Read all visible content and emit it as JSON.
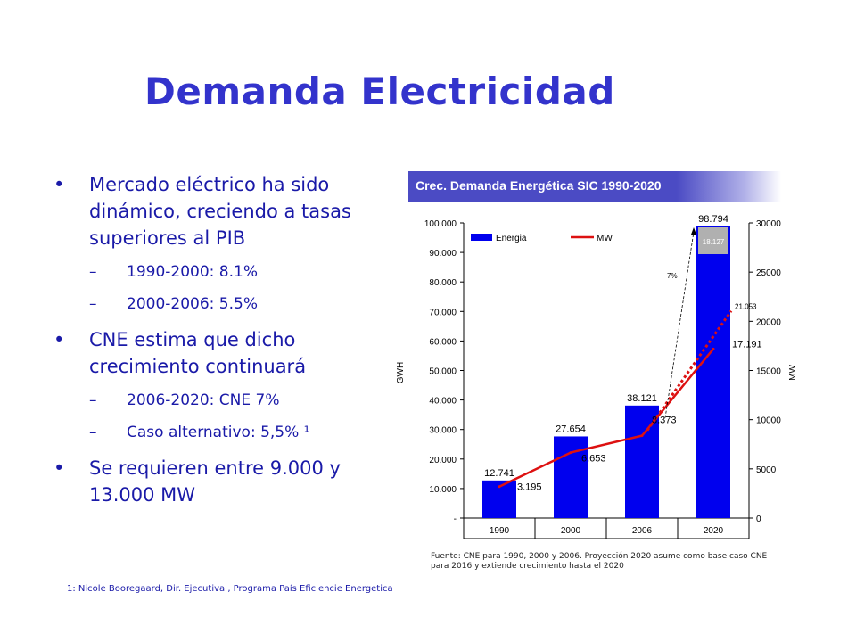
{
  "title": "Demanda Electricidad",
  "bullets": [
    {
      "text": "Mercado eléctrico ha sido dinámico, creciendo a tasas superiores al PIB",
      "sub": [
        "1990-2000: 8.1%",
        "2000-2006: 5.5%"
      ]
    },
    {
      "text": "CNE estima que dicho crecimiento continuará",
      "sub": [
        "2006-2020: CNE 7%",
        "Caso alternativo: 5,5% ¹"
      ]
    },
    {
      "text": "Se requieren entre 9.000 y 13.000 MW",
      "sub": []
    }
  ],
  "footnote": "1: Nicole Booregaard, Dir. Ejecutiva , Programa País Eficiencie Energetica",
  "chart_header": "Crec. Demanda Energética SIC 1990-2020",
  "source_note": "Fuente: CNE para 1990, 2000 y 2006. Proyección 2020 asume como base caso CNE para 2016 y extiende crecimiento hasta el 2020",
  "colors": {
    "title": "#3333cc",
    "text": "#1a1aa8",
    "bar": "#0000ee",
    "line": "#dd1111",
    "header": "#4b4bc4"
  },
  "chart_data": {
    "type": "bar",
    "categories": [
      "1990",
      "2000",
      "2006",
      "2020"
    ],
    "ylabel": "GWH",
    "y2label": "MW",
    "ylim": [
      0,
      100000
    ],
    "y2lim": [
      0,
      30000
    ],
    "yticks": [
      0,
      10000,
      20000,
      30000,
      40000,
      50000,
      60000,
      70000,
      80000,
      90000,
      100000
    ],
    "ytick_labels": [
      "-",
      "10.000",
      "20.000",
      "30.000",
      "40.000",
      "50.000",
      "60.000",
      "70.000",
      "80.000",
      "90.000",
      "100.000"
    ],
    "y2ticks": [
      0,
      5000,
      10000,
      15000,
      20000,
      25000,
      30000
    ],
    "y2tick_labels": [
      "0",
      "5000",
      "10000",
      "15000",
      "20000",
      "25000",
      "30000"
    ],
    "legend": {
      "bar": "Energia",
      "line": "MW",
      "position": "top"
    },
    "series": [
      {
        "name": "Energia",
        "type": "bar",
        "axis": "left",
        "values": [
          12741,
          27654,
          38121,
          98794
        ],
        "labels": [
          "12.741",
          "27.654",
          "38.121",
          "98.794"
        ]
      },
      {
        "name": "MW",
        "type": "line",
        "axis": "right",
        "values": [
          3195,
          6653,
          8373,
          17191
        ],
        "labels": [
          "3.195",
          "6.653",
          "8.373",
          "17.191"
        ]
      }
    ],
    "bar_inset": {
      "category": "2020",
      "value": 18127,
      "label": "18.127"
    },
    "alt_projection": {
      "from": "2006",
      "from_value": 8373,
      "to": "2020",
      "to_value": 21053,
      "label": "21.053",
      "style": "dotted"
    },
    "growth_annotation": {
      "label": "7%",
      "from": "2006",
      "to": "2020",
      "style": "dashed-arrow"
    }
  }
}
